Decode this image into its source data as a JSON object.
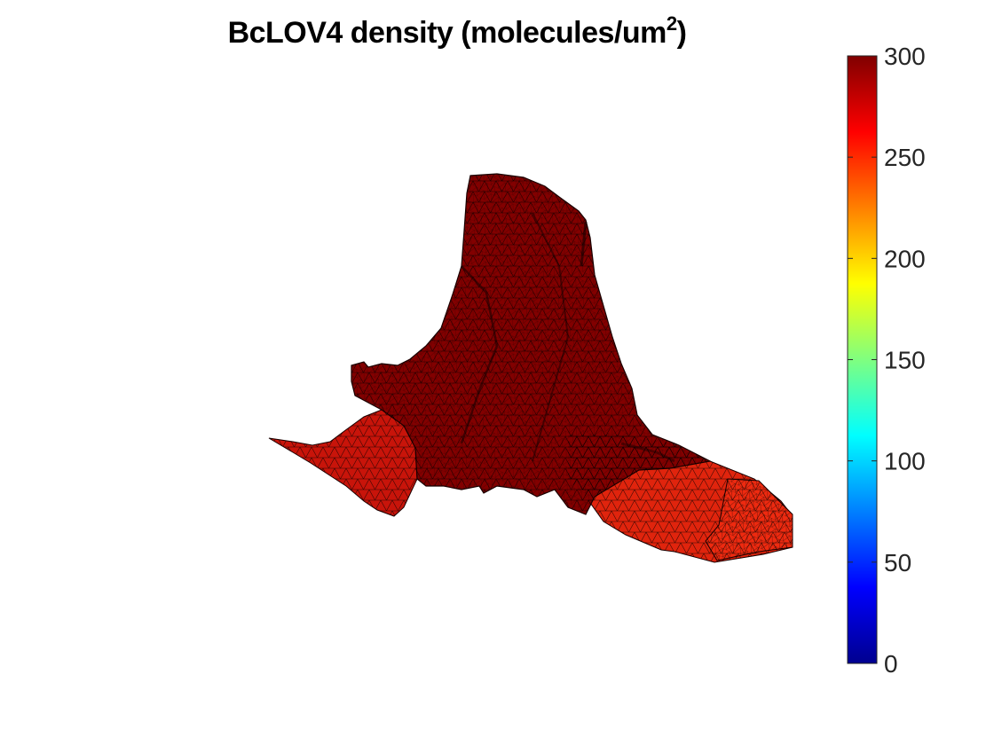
{
  "chart_data": {
    "type": "surface",
    "title": "BcLOV4 density (molecules/um",
    "title_superscript": "2",
    "title_suffix": ")",
    "colormap": "jet",
    "colorbar": {
      "placement": "right",
      "clim": [
        0,
        300
      ],
      "ticks": [
        0,
        50,
        100,
        150,
        200,
        250,
        300
      ],
      "tick_labels": [
        "0",
        "50",
        "100",
        "150",
        "200",
        "250",
        "300"
      ]
    },
    "surface_values": {
      "body": 300,
      "left_arm": 285,
      "right_arm": 265,
      "right_tip": 260
    },
    "axes_visible": false,
    "grid": false
  }
}
